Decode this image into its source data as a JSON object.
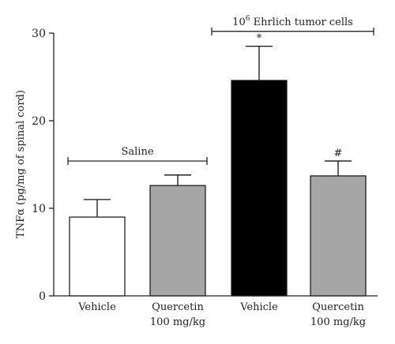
{
  "chart_data": {
    "type": "bar",
    "ylabel": "TNFα (pg/mg of spinal cord)",
    "ylim": [
      0,
      30
    ],
    "yticks": [
      0,
      10,
      20,
      30
    ],
    "grid": false,
    "categories": [
      {
        "line1": "Vehicle",
        "line2": ""
      },
      {
        "line1": "Quercetin",
        "line2": "100 mg/kg"
      },
      {
        "line1": "Vehicle",
        "line2": ""
      },
      {
        "line1": "Quercetin",
        "line2": "100 mg/kg"
      }
    ],
    "values": [
      9.0,
      12.6,
      24.6,
      13.7
    ],
    "errors": [
      2.0,
      1.2,
      3.9,
      1.7
    ],
    "bar_colors": [
      "#ffffff",
      "#a6a6a6",
      "#000000",
      "#a6a6a6"
    ],
    "significance": [
      "",
      "",
      "*",
      "#"
    ],
    "groups": [
      {
        "label": "Saline",
        "from": 0,
        "to": 1,
        "level": 15.4
      },
      {
        "label_base": "10",
        "label_sup": "6",
        "label_rest": " Ehrlich tumor cells",
        "from": 2,
        "to": 3,
        "level": 30.2
      }
    ]
  }
}
